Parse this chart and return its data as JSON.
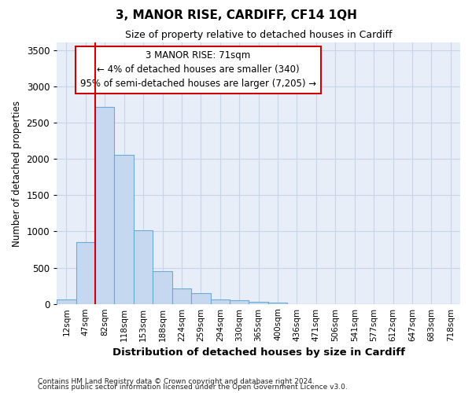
{
  "title": "3, MANOR RISE, CARDIFF, CF14 1QH",
  "subtitle": "Size of property relative to detached houses in Cardiff",
  "xlabel": "Distribution of detached houses by size in Cardiff",
  "ylabel": "Number of detached properties",
  "bin_labels": [
    "12sqm",
    "47sqm",
    "82sqm",
    "118sqm",
    "153sqm",
    "188sqm",
    "224sqm",
    "259sqm",
    "294sqm",
    "330sqm",
    "365sqm",
    "400sqm",
    "436sqm",
    "471sqm",
    "506sqm",
    "541sqm",
    "577sqm",
    "612sqm",
    "647sqm",
    "683sqm",
    "718sqm"
  ],
  "bar_heights": [
    60,
    850,
    2720,
    2050,
    1010,
    450,
    210,
    145,
    65,
    55,
    30,
    15,
    0,
    0,
    0,
    0,
    0,
    0,
    0,
    0,
    0
  ],
  "bar_color": "#c5d8f0",
  "bar_edge_color": "#6aaad4",
  "grid_color": "#c8d4e8",
  "background_color": "#e8eef8",
  "vline_x": 1.5,
  "vline_color": "#cc0000",
  "annotation_text": "3 MANOR RISE: 71sqm\n← 4% of detached houses are smaller (340)\n95% of semi-detached houses are larger (7,205) →",
  "annotation_box_color": "#ffffff",
  "annotation_box_edge": "#cc0000",
  "ylim": [
    0,
    3600
  ],
  "yticks": [
    0,
    500,
    1000,
    1500,
    2000,
    2500,
    3000,
    3500
  ],
  "footnote1": "Contains HM Land Registry data © Crown copyright and database right 2024.",
  "footnote2": "Contains public sector information licensed under the Open Government Licence v3.0."
}
